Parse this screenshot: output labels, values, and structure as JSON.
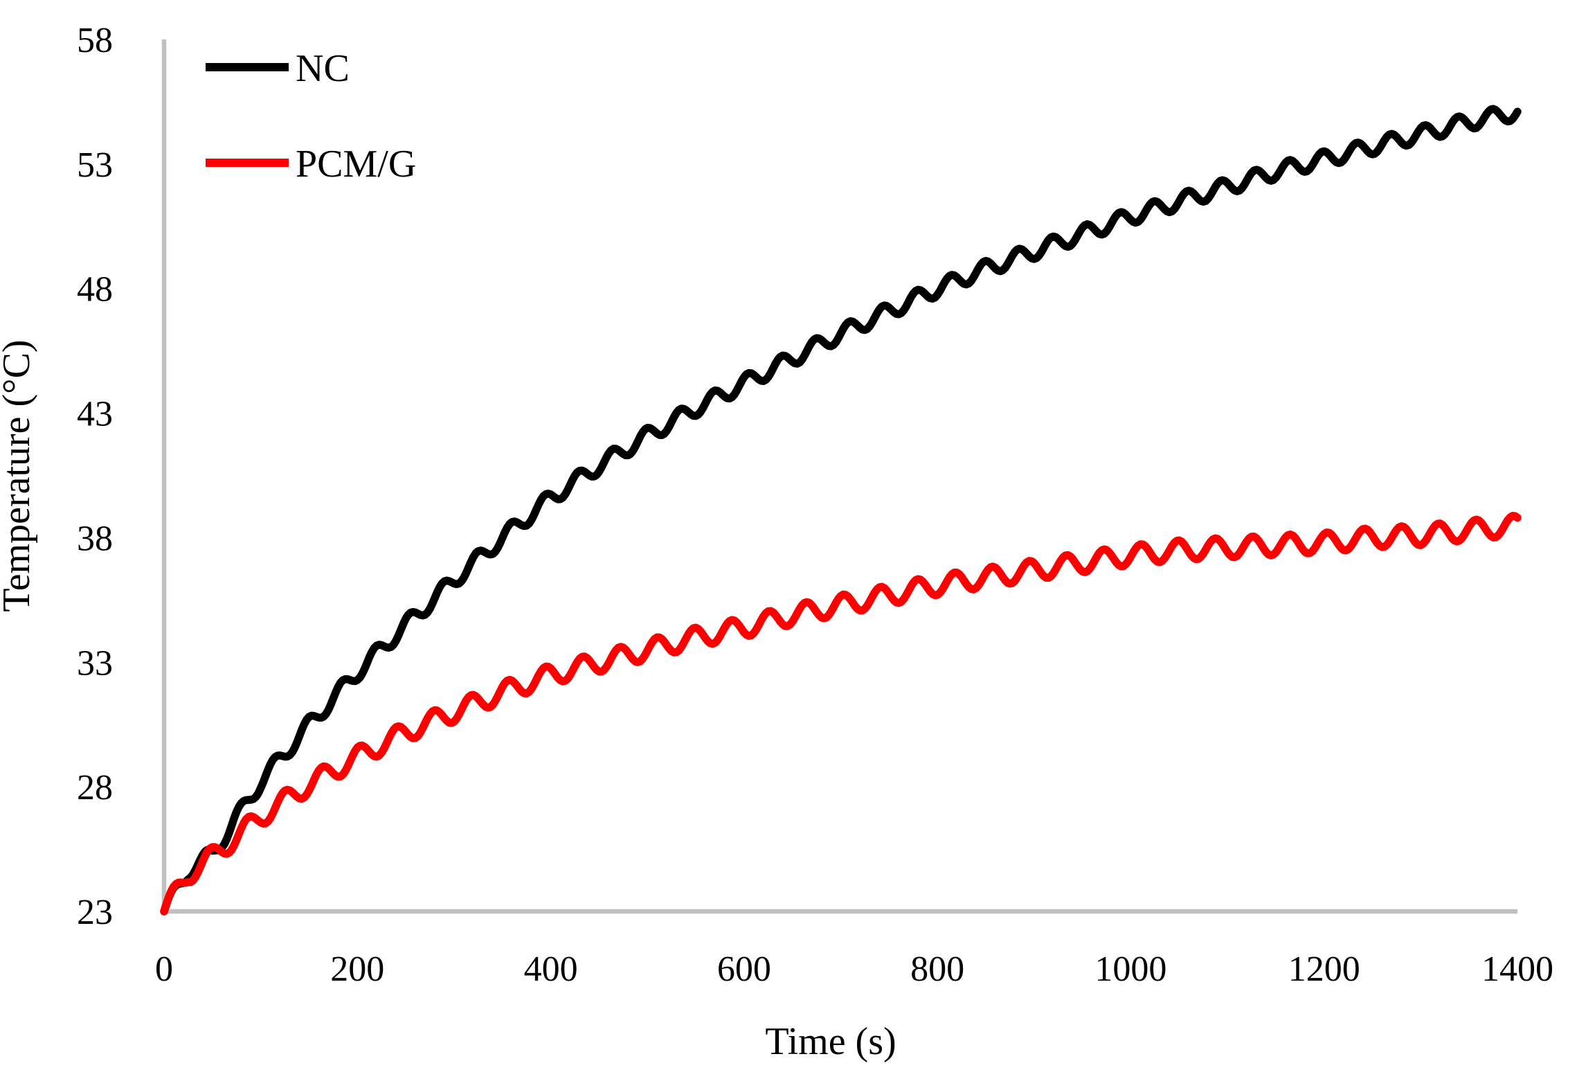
{
  "chart_data": {
    "type": "line",
    "title": "",
    "xlabel": "Time (s)",
    "ylabel": "Temperature (°C)",
    "xlim": [
      0,
      1400
    ],
    "ylim": [
      23,
      58
    ],
    "x_ticks": [
      0,
      200,
      400,
      600,
      800,
      1000,
      1200,
      1400
    ],
    "y_ticks": [
      23,
      28,
      33,
      38,
      43,
      48,
      53,
      58
    ],
    "grid": false,
    "legend_position": "top-left-inside",
    "axis_color": "#c0c0c0",
    "x": [
      0,
      25,
      50,
      100,
      150,
      200,
      250,
      300,
      350,
      400,
      450,
      500,
      550,
      600,
      650,
      700,
      750,
      800,
      850,
      900,
      950,
      1000,
      1050,
      1100,
      1150,
      1200,
      1250,
      1300,
      1350,
      1400
    ],
    "series": [
      {
        "name": "NC",
        "color": "#000000",
        "line_width": 11.5,
        "ripple_amplitude": 0.32,
        "ripple_period_s": 35,
        "values": [
          23.0,
          24.6,
          25.3,
          28.2,
          30.5,
          32.6,
          34.5,
          36.3,
          38.0,
          39.6,
          40.9,
          42.1,
          43.2,
          44.2,
          45.2,
          46.2,
          47.1,
          48.0,
          48.8,
          49.5,
          50.2,
          50.9,
          51.5,
          52.1,
          52.7,
          53.2,
          53.7,
          54.2,
          54.7,
          55.1
        ]
      },
      {
        "name": "PCM/G",
        "color": "#ff0000",
        "line_width": 11.5,
        "ripple_amplitude": 0.4,
        "ripple_period_s": 38.5,
        "values": [
          23.0,
          24.5,
          25.2,
          26.8,
          28.1,
          29.2,
          30.2,
          31.0,
          31.8,
          32.5,
          33.0,
          33.5,
          34.0,
          34.4,
          34.9,
          35.3,
          35.7,
          36.1,
          36.4,
          36.7,
          37.0,
          37.3,
          37.5,
          37.6,
          37.7,
          37.8,
          38.0,
          38.1,
          38.3,
          38.5
        ]
      }
    ],
    "oscillation_note": "Both curves carry a small periodic ripple superimposed on the rising trend"
  }
}
